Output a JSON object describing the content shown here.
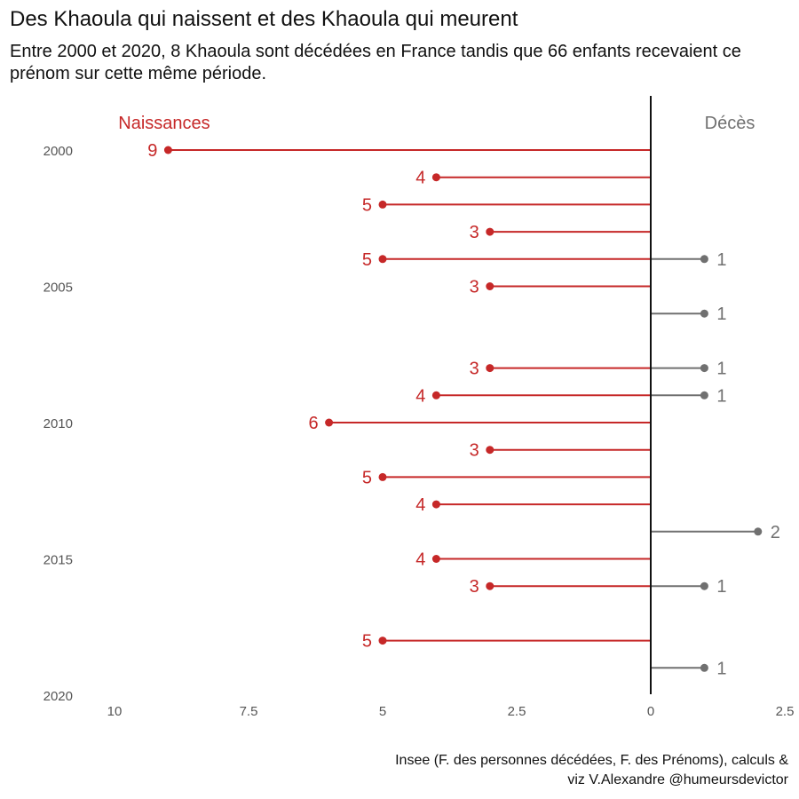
{
  "header": {
    "title": "Des Khaoula qui naissent et des Khaoula qui meurent",
    "subtitle": "Entre 2000 et 2020, 8 Khaoula sont décédées en France tandis que 66 enfants recevaient ce prénom sur cette même période."
  },
  "caption": {
    "line1": "Insee (F. des personnes décédées, F. des Prénoms), calculs &",
    "line2": "viz V.Alexandre @humeursdevictor"
  },
  "colors": {
    "births": "#c62828",
    "deaths": "#707070",
    "axis": "#111111",
    "ticks": "#555555"
  },
  "chart_data": {
    "type": "lollipop",
    "group_labels": {
      "births": "Naissances",
      "deaths": "Décès"
    },
    "xlim": [
      -10.5,
      2.5
    ],
    "x_ticks": [
      {
        "value": -10,
        "label": "10"
      },
      {
        "value": -7.5,
        "label": "7.5"
      },
      {
        "value": -5,
        "label": "5"
      },
      {
        "value": -2.5,
        "label": "2.5"
      },
      {
        "value": 0,
        "label": "0"
      },
      {
        "value": 2.5,
        "label": "2.5"
      }
    ],
    "ylim": [
      2000,
      2020
    ],
    "y_ticks": [
      2000,
      2005,
      2010,
      2015,
      2020
    ],
    "series": [
      {
        "name": "Naissances",
        "side": "left",
        "points": [
          {
            "year": 2000,
            "value": 9
          },
          {
            "year": 2001,
            "value": 4
          },
          {
            "year": 2002,
            "value": 5
          },
          {
            "year": 2003,
            "value": 3
          },
          {
            "year": 2004,
            "value": 5
          },
          {
            "year": 2005,
            "value": 3
          },
          {
            "year": 2008,
            "value": 3
          },
          {
            "year": 2009,
            "value": 4
          },
          {
            "year": 2010,
            "value": 6
          },
          {
            "year": 2011,
            "value": 3
          },
          {
            "year": 2012,
            "value": 5
          },
          {
            "year": 2013,
            "value": 4
          },
          {
            "year": 2015,
            "value": 4
          },
          {
            "year": 2016,
            "value": 3
          },
          {
            "year": 2018,
            "value": 5
          }
        ]
      },
      {
        "name": "Décès",
        "side": "right",
        "points": [
          {
            "year": 2004,
            "value": 1
          },
          {
            "year": 2006,
            "value": 1
          },
          {
            "year": 2008,
            "value": 1
          },
          {
            "year": 2009,
            "value": 1
          },
          {
            "year": 2014,
            "value": 2
          },
          {
            "year": 2016,
            "value": 1
          },
          {
            "year": 2019,
            "value": 1
          }
        ]
      }
    ]
  }
}
